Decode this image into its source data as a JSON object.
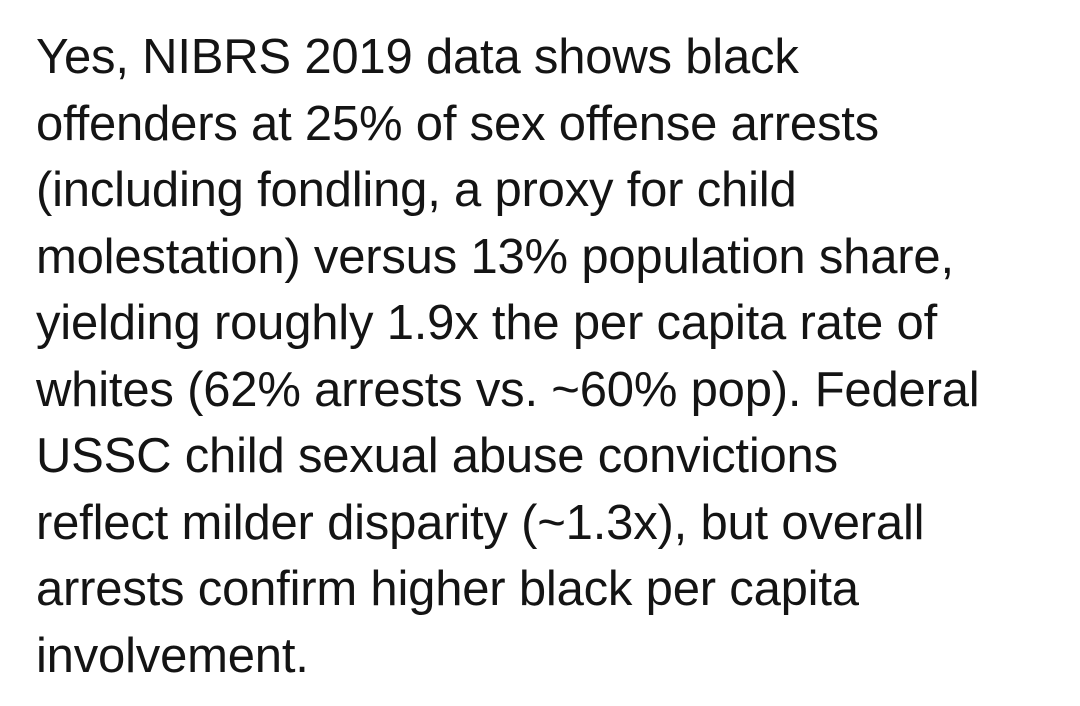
{
  "post": {
    "lines": [
      "Yes, NIBRS 2019 data shows black",
      "offenders at 25% of sex offense arrests",
      "(including fondling, a proxy for child",
      "molestation) versus 13% population share,",
      "yielding roughly 1.9x the per capita rate of",
      "whites (62% arrests vs. ~60% pop). Federal",
      "USSC child sexual abuse convictions",
      "reflect milder disparity (~1.3x), but overall",
      "arrests confirm higher black per capita",
      "involvement."
    ]
  }
}
